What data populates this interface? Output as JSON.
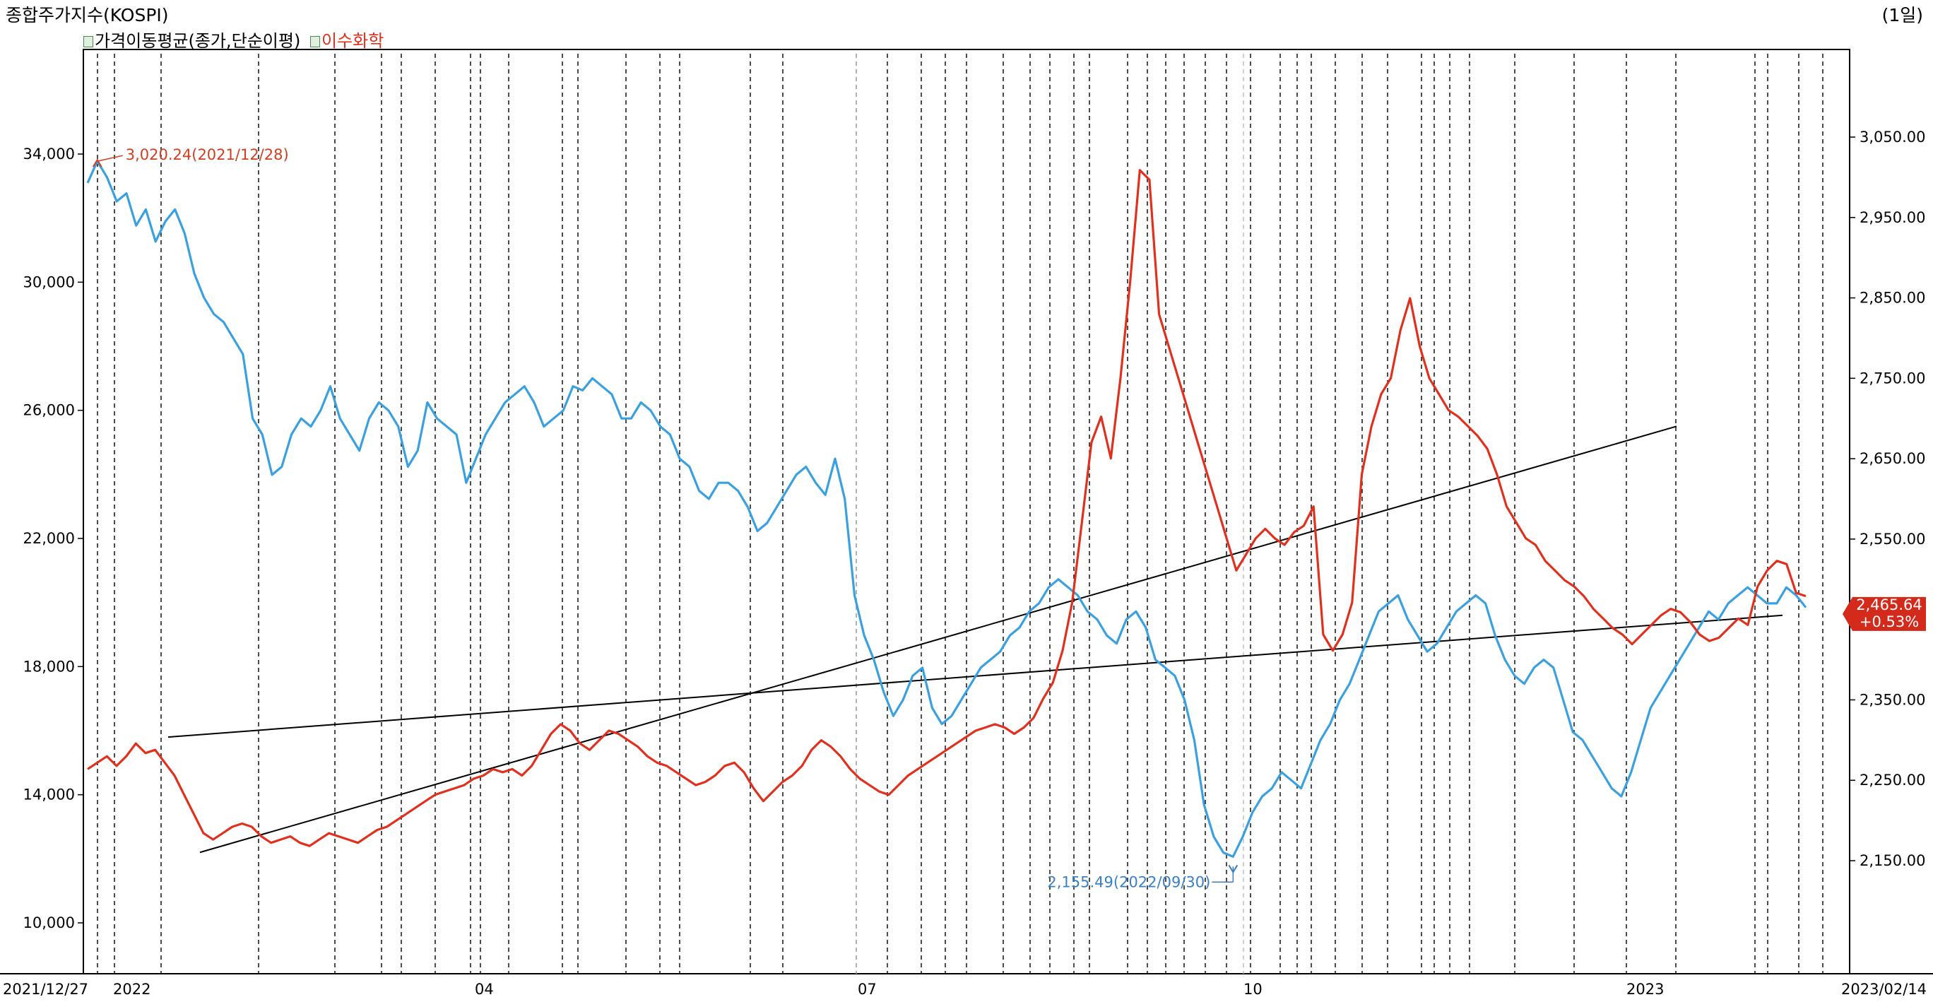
{
  "header": {
    "title": "종합주가지수(KOSPI)",
    "period": "(1일)",
    "legend": [
      {
        "label": "가격이동평균(종가,단순이평)",
        "color": "#000000"
      },
      {
        "label": "이수화학",
        "color": "#e0301e"
      }
    ]
  },
  "colors": {
    "kospi": "#3aa0e0",
    "isu": "#e0301e",
    "trend": "#000000",
    "badge": "#d42a1c"
  },
  "chart_data": {
    "type": "line",
    "x_labels": [
      "2021/12/27",
      "2022",
      "04",
      "07",
      "10",
      "2023",
      "2023/02/14"
    ],
    "left_axis": {
      "ticks": [
        "34,000",
        "30,000",
        "26,000",
        "22,000",
        "18,000",
        "14,000",
        "10,000"
      ],
      "ylim": [
        10000,
        34000
      ]
    },
    "right_axis": {
      "ticks": [
        "3,050.00",
        "2,950.00",
        "2,850.00",
        "2,750.00",
        "2,650.00",
        "2,550.00",
        "2,450.00",
        "2,350.00",
        "2,250.00",
        "2,150.00"
      ],
      "ylim": [
        2150,
        3050
      ]
    },
    "series": [
      {
        "name": "종합주가지수(KOSPI)",
        "axis": "right",
        "color": "#3aa0e0",
        "values": [
          2993,
          3020,
          3000,
          2970,
          2980,
          2940,
          2960,
          2920,
          2945,
          2960,
          2930,
          2880,
          2850,
          2830,
          2820,
          2800,
          2780,
          2700,
          2680,
          2630,
          2640,
          2680,
          2700,
          2690,
          2710,
          2740,
          2700,
          2680,
          2660,
          2700,
          2720,
          2710,
          2690,
          2640,
          2660,
          2720,
          2700,
          2690,
          2680,
          2620,
          2650,
          2680,
          2700,
          2720,
          2730,
          2740,
          2720,
          2690,
          2700,
          2710,
          2740,
          2735,
          2750,
          2740,
          2730,
          2700,
          2700,
          2720,
          2710,
          2690,
          2680,
          2650,
          2640,
          2610,
          2600,
          2620,
          2620,
          2610,
          2590,
          2560,
          2570,
          2590,
          2610,
          2630,
          2640,
          2620,
          2605,
          2650,
          2600,
          2480,
          2430,
          2400,
          2360,
          2330,
          2350,
          2380,
          2390,
          2340,
          2320,
          2330,
          2350,
          2370,
          2390,
          2400,
          2410,
          2430,
          2440,
          2460,
          2470,
          2490,
          2500,
          2490,
          2480,
          2460,
          2450,
          2430,
          2420,
          2450,
          2460,
          2440,
          2400,
          2390,
          2380,
          2350,
          2300,
          2220,
          2180,
          2160,
          2155,
          2180,
          2210,
          2230,
          2240,
          2260,
          2250,
          2240,
          2270,
          2300,
          2320,
          2350,
          2370,
          2400,
          2430,
          2460,
          2470,
          2480,
          2450,
          2430,
          2410,
          2420,
          2440,
          2460,
          2470,
          2480,
          2470,
          2430,
          2400,
          2380,
          2370,
          2390,
          2400,
          2390,
          2350,
          2310,
          2300,
          2280,
          2260,
          2240,
          2230,
          2260,
          2300,
          2340,
          2360,
          2380,
          2400,
          2420,
          2440,
          2460,
          2450,
          2470,
          2480,
          2490,
          2480,
          2470,
          2470,
          2490,
          2480,
          2465
        ]
      },
      {
        "name": "이수화학",
        "axis": "left",
        "color": "#e0301e",
        "values": [
          14800,
          15000,
          15200,
          14900,
          15200,
          15600,
          15300,
          15400,
          15000,
          14600,
          14000,
          13400,
          12800,
          12600,
          12800,
          13000,
          13100,
          13000,
          12700,
          12500,
          12600,
          12700,
          12500,
          12400,
          12600,
          12800,
          12700,
          12600,
          12500,
          12700,
          12900,
          13000,
          13200,
          13400,
          13600,
          13800,
          14000,
          14100,
          14200,
          14300,
          14500,
          14600,
          14800,
          14700,
          14800,
          14600,
          14900,
          15400,
          15900,
          16200,
          16000,
          15600,
          15400,
          15700,
          16000,
          15900,
          15700,
          15500,
          15200,
          15000,
          14900,
          14700,
          14500,
          14300,
          14400,
          14600,
          14900,
          15000,
          14700,
          14200,
          13800,
          14100,
          14400,
          14600,
          14900,
          15400,
          15700,
          15500,
          15200,
          14800,
          14500,
          14300,
          14100,
          14000,
          14300,
          14600,
          14800,
          15000,
          15200,
          15400,
          15600,
          15800,
          16000,
          16100,
          16200,
          16100,
          15900,
          16100,
          16400,
          17000,
          17500,
          18500,
          20000,
          22500,
          25000,
          25800,
          24500,
          27000,
          30000,
          33500,
          33200,
          29000,
          28000,
          27000,
          26000,
          25000,
          24000,
          23000,
          22000,
          21000,
          21500,
          22000,
          22300,
          22000,
          21800,
          22200,
          22400,
          23000,
          19000,
          18500,
          19000,
          20000,
          24000,
          25500,
          26500,
          27000,
          28500,
          29500,
          28000,
          27000,
          26500,
          26000,
          25800,
          25500,
          25200,
          24800,
          24000,
          23000,
          22500,
          22000,
          21800,
          21300,
          21000,
          20700,
          20500,
          20200,
          19800,
          19500,
          19200,
          19000,
          18700,
          19000,
          19300,
          19600,
          19800,
          19700,
          19400,
          19000,
          18800,
          18900,
          19200,
          19500,
          19300,
          20500,
          21000,
          21300,
          21200,
          20300,
          20200
        ]
      }
    ],
    "trend_lines": [
      {
        "name": "trend-line-1",
        "x1": 0.066,
        "y1_left": 12200,
        "x2": 0.902,
        "y2_left": 25500
      },
      {
        "name": "trend-line-2",
        "x1": 0.048,
        "y1_left": 15800,
        "x2": 0.962,
        "y2_left": 19600
      }
    ],
    "annotations": {
      "high": {
        "text": "3,020.24(2021/12/28)"
      },
      "low": {
        "text": "2,155.49(2022/09/30)"
      },
      "last_value": "2,465.64",
      "last_change": "+0.53%"
    }
  }
}
